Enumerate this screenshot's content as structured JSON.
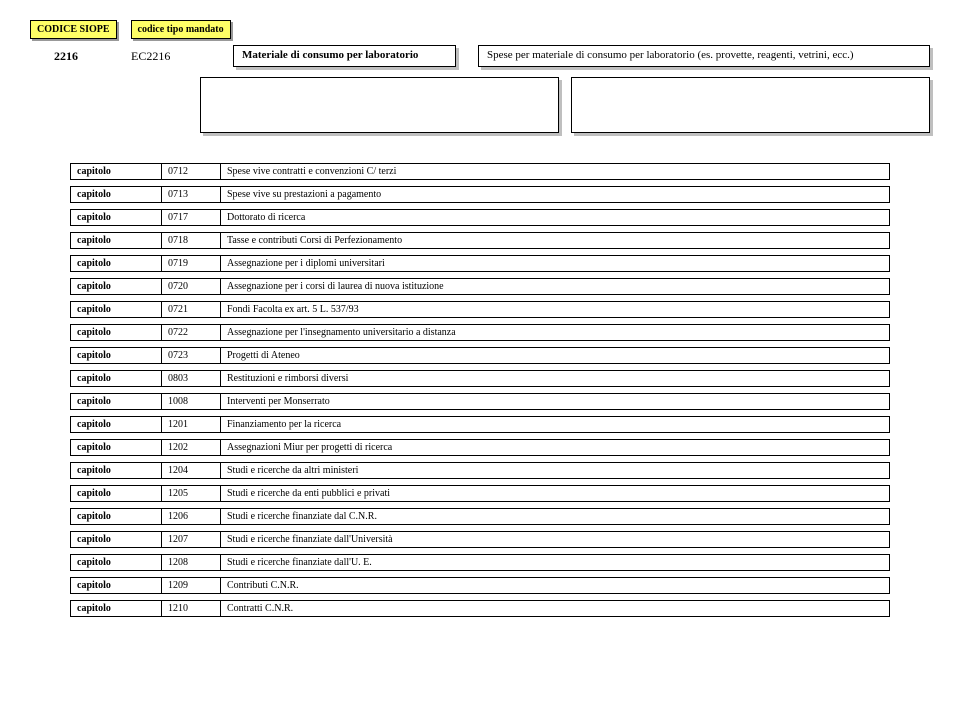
{
  "header": {
    "label_siope": "CODICE SIOPE",
    "label_mandato": "codice tipo mandato",
    "code": "2216",
    "mandate": "EC2216",
    "desc_bold": "Materiale di consumo per laboratorio",
    "desc_long": "Spese per materiale di consumo per laboratorio (es. provette, reagenti, vetrini, ecc.)"
  },
  "rows": [
    {
      "k": "capitolo",
      "c": "0712",
      "d": "Spese vive contratti e convenzioni C/ terzi"
    },
    {
      "k": "capitolo",
      "c": "0713",
      "d": "Spese vive su prestazioni a pagamento"
    },
    {
      "k": "capitolo",
      "c": "0717",
      "d": "Dottorato di ricerca"
    },
    {
      "k": "capitolo",
      "c": "0718",
      "d": "Tasse e contributi Corsi di Perfezionamento"
    },
    {
      "k": "capitolo",
      "c": "0719",
      "d": "Assegnazione per i diplomi universitari"
    },
    {
      "k": "capitolo",
      "c": "0720",
      "d": "Assegnazione per i corsi di laurea di nuova istituzione"
    },
    {
      "k": "capitolo",
      "c": "0721",
      "d": "Fondi Facolta ex art. 5 L. 537/93"
    },
    {
      "k": "capitolo",
      "c": "0722",
      "d": "Assegnazione per l'insegnamento universitario a distanza"
    },
    {
      "k": "capitolo",
      "c": "0723",
      "d": "Progetti di Ateneo"
    },
    {
      "k": "capitolo",
      "c": "0803",
      "d": "Restituzioni e rimborsi diversi"
    },
    {
      "k": "capitolo",
      "c": "1008",
      "d": "Interventi per Monserrato"
    },
    {
      "k": "capitolo",
      "c": "1201",
      "d": "Finanziamento per la ricerca"
    },
    {
      "k": "capitolo",
      "c": "1202",
      "d": "Assegnazioni Miur per progetti di ricerca"
    },
    {
      "k": "capitolo",
      "c": "1204",
      "d": "Studi e ricerche da altri ministeri"
    },
    {
      "k": "capitolo",
      "c": "1205",
      "d": "Studi e ricerche da enti pubblici e privati"
    },
    {
      "k": "capitolo",
      "c": "1206",
      "d": "Studi e ricerche finanziate dal C.N.R."
    },
    {
      "k": "capitolo",
      "c": "1207",
      "d": "Studi e ricerche finanziate dall'Università"
    },
    {
      "k": "capitolo",
      "c": "1208",
      "d": "Studi e ricerche finanziate dall'U. E."
    },
    {
      "k": "capitolo",
      "c": "1209",
      "d": "Contributi C.N.R."
    },
    {
      "k": "capitolo",
      "c": "1210",
      "d": "Contratti C.N.R."
    }
  ]
}
